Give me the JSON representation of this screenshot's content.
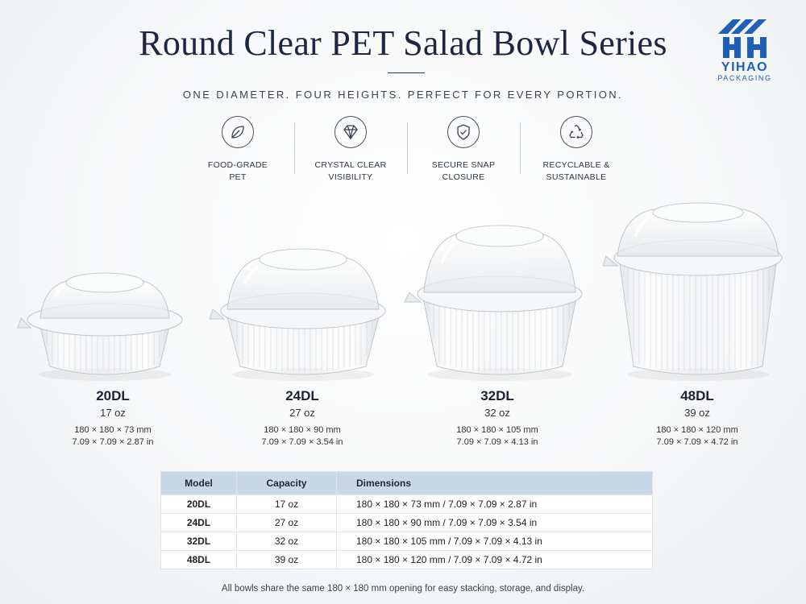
{
  "title": "Round Clear PET Salad Bowl Series",
  "subtitle": "ONE DIAMETER. FOUR HEIGHTS. PERFECT FOR EVERY PORTION.",
  "logo": {
    "name": "YIHAO",
    "tagline": "PACKAGING",
    "color": "#1f5fb8"
  },
  "features": [
    {
      "icon": "leaf-icon",
      "label": "FOOD-GRADE\nPET"
    },
    {
      "icon": "diamond-icon",
      "label": "CRYSTAL CLEAR\nVISIBILITY"
    },
    {
      "icon": "shield-check-icon",
      "label": "SECURE SNAP\nCLOSURE"
    },
    {
      "icon": "recycle-icon",
      "label": "RECYCLABLE &\nSUSTAINABLE"
    }
  ],
  "models": [
    {
      "name": "20DL",
      "capacity": "17 oz",
      "dim_mm": "180 × 180 × 73 mm",
      "dim_in": "7.09 × 7.09 × 2.87 in"
    },
    {
      "name": "24DL",
      "capacity": "27 oz",
      "dim_mm": "180 × 180 × 90 mm",
      "dim_in": "7.09 × 7.09 × 3.54 in"
    },
    {
      "name": "32DL",
      "capacity": "32 oz",
      "dim_mm": "180 × 180 × 105 mm",
      "dim_in": "7.09 × 7.09 × 4.13 in"
    },
    {
      "name": "48DL",
      "capacity": "39 oz",
      "dim_mm": "180 × 180 × 120 mm",
      "dim_in": "7.09 × 7.09 × 4.72 in"
    }
  ],
  "table": {
    "headers": [
      "Model",
      "Capacity",
      "Dimensions"
    ],
    "rows": [
      {
        "model": "20DL",
        "capacity": "17 oz",
        "dimensions": "180 × 180 × 73 mm  /  7.09 × 7.09 × 2.87 in"
      },
      {
        "model": "24DL",
        "capacity": "27 oz",
        "dimensions": "180 × 180 × 90 mm  /  7.09 × 7.09 × 3.54 in"
      },
      {
        "model": "32DL",
        "capacity": "32 oz",
        "dimensions": "180 × 180 × 105 mm  /  7.09 × 7.09 × 4.13 in"
      },
      {
        "model": "48DL",
        "capacity": "39 oz",
        "dimensions": "180 × 180 × 120 mm  /  7.09 × 7.09 × 4.72 in"
      }
    ]
  },
  "footnote": "All bowls share the same 180 × 180 mm opening for easy stacking, storage, and display."
}
